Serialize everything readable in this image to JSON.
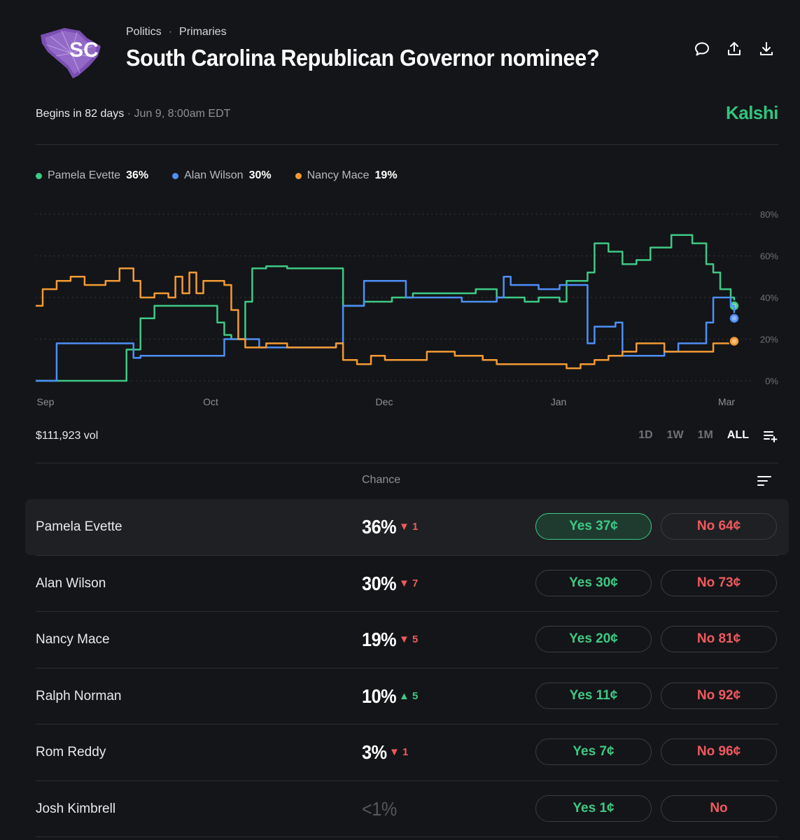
{
  "header": {
    "logo_text": "SC",
    "breadcrumb": [
      "Politics",
      "Primaries"
    ],
    "title": "South Carolina Republican Governor nominee?",
    "icons": [
      "comment-icon",
      "share-icon",
      "download-icon"
    ]
  },
  "schedule": {
    "begins": "Begins in 82 days",
    "date": "Jun 9, 8:00am EDT"
  },
  "brand": {
    "name": "Kalshi",
    "color": "#32c47f"
  },
  "legend": [
    {
      "name": "Pamela Evette",
      "pct": "36%",
      "color": "#3ec985"
    },
    {
      "name": "Alan Wilson",
      "pct": "30%",
      "color": "#4e8ff7"
    },
    {
      "name": "Nancy Mace",
      "pct": "19%",
      "color": "#f39a34"
    }
  ],
  "chart_data": {
    "type": "line",
    "x_ticks": [
      "Sep",
      "Oct",
      "Dec",
      "Jan",
      "Mar"
    ],
    "y_ticks": [
      "0%",
      "20%",
      "40%",
      "60%",
      "80%"
    ],
    "ylim": [
      0,
      80
    ],
    "grid": true,
    "series": [
      {
        "name": "Pamela Evette",
        "color": "#3ec985",
        "points": [
          [
            0,
            0
          ],
          [
            0.13,
            0
          ],
          [
            0.13,
            15
          ],
          [
            0.15,
            30
          ],
          [
            0.17,
            36
          ],
          [
            0.2,
            36
          ],
          [
            0.25,
            36
          ],
          [
            0.26,
            28
          ],
          [
            0.27,
            22
          ],
          [
            0.28,
            20
          ],
          [
            0.3,
            38
          ],
          [
            0.31,
            54
          ],
          [
            0.33,
            55
          ],
          [
            0.34,
            55
          ],
          [
            0.36,
            54
          ],
          [
            0.43,
            54
          ],
          [
            0.44,
            36
          ],
          [
            0.47,
            38
          ],
          [
            0.51,
            40
          ],
          [
            0.54,
            42
          ],
          [
            0.6,
            42
          ],
          [
            0.63,
            44
          ],
          [
            0.66,
            40
          ],
          [
            0.7,
            38
          ],
          [
            0.72,
            40
          ],
          [
            0.75,
            38
          ],
          [
            0.76,
            48
          ],
          [
            0.79,
            52
          ],
          [
            0.8,
            66
          ],
          [
            0.82,
            62
          ],
          [
            0.84,
            56
          ],
          [
            0.86,
            58
          ],
          [
            0.88,
            64
          ],
          [
            0.91,
            70
          ],
          [
            0.93,
            70
          ],
          [
            0.94,
            66
          ],
          [
            0.96,
            56
          ],
          [
            0.97,
            52
          ],
          [
            0.98,
            44
          ],
          [
            0.995,
            40
          ],
          [
            1,
            36
          ]
        ]
      },
      {
        "name": "Alan Wilson",
        "color": "#4e8ff7",
        "points": [
          [
            0,
            0
          ],
          [
            0.03,
            0
          ],
          [
            0.03,
            18
          ],
          [
            0.13,
            18
          ],
          [
            0.14,
            11
          ],
          [
            0.15,
            12
          ],
          [
            0.26,
            12
          ],
          [
            0.27,
            20
          ],
          [
            0.3,
            20
          ],
          [
            0.32,
            16
          ],
          [
            0.34,
            16
          ],
          [
            0.36,
            16
          ],
          [
            0.42,
            16
          ],
          [
            0.43,
            18
          ],
          [
            0.44,
            36
          ],
          [
            0.47,
            48
          ],
          [
            0.52,
            48
          ],
          [
            0.53,
            40
          ],
          [
            0.6,
            40
          ],
          [
            0.61,
            38
          ],
          [
            0.66,
            40
          ],
          [
            0.67,
            50
          ],
          [
            0.68,
            46
          ],
          [
            0.71,
            46
          ],
          [
            0.72,
            44
          ],
          [
            0.75,
            46
          ],
          [
            0.79,
            46
          ],
          [
            0.79,
            18
          ],
          [
            0.8,
            26
          ],
          [
            0.83,
            28
          ],
          [
            0.84,
            12
          ],
          [
            0.88,
            12
          ],
          [
            0.9,
            14
          ],
          [
            0.92,
            18
          ],
          [
            0.96,
            28
          ],
          [
            0.97,
            40
          ],
          [
            0.995,
            36
          ],
          [
            1,
            30
          ]
        ]
      },
      {
        "name": "Nancy Mace",
        "color": "#f39a34",
        "points": [
          [
            0,
            36
          ],
          [
            0.01,
            44
          ],
          [
            0.03,
            48
          ],
          [
            0.05,
            50
          ],
          [
            0.07,
            46
          ],
          [
            0.1,
            48
          ],
          [
            0.12,
            54
          ],
          [
            0.14,
            48
          ],
          [
            0.15,
            40
          ],
          [
            0.17,
            42
          ],
          [
            0.19,
            40
          ],
          [
            0.2,
            50
          ],
          [
            0.21,
            42
          ],
          [
            0.22,
            52
          ],
          [
            0.23,
            42
          ],
          [
            0.24,
            48
          ],
          [
            0.27,
            46
          ],
          [
            0.28,
            34
          ],
          [
            0.29,
            20
          ],
          [
            0.3,
            16
          ],
          [
            0.33,
            18
          ],
          [
            0.35,
            18
          ],
          [
            0.36,
            16
          ],
          [
            0.42,
            16
          ],
          [
            0.43,
            18
          ],
          [
            0.44,
            10
          ],
          [
            0.46,
            8
          ],
          [
            0.48,
            12
          ],
          [
            0.5,
            10
          ],
          [
            0.54,
            10
          ],
          [
            0.56,
            14
          ],
          [
            0.6,
            12
          ],
          [
            0.64,
            10
          ],
          [
            0.66,
            8
          ],
          [
            0.7,
            8
          ],
          [
            0.74,
            8
          ],
          [
            0.76,
            6
          ],
          [
            0.78,
            8
          ],
          [
            0.8,
            10
          ],
          [
            0.82,
            12
          ],
          [
            0.84,
            14
          ],
          [
            0.86,
            18
          ],
          [
            0.9,
            14
          ],
          [
            0.94,
            14
          ],
          [
            0.97,
            18
          ],
          [
            1,
            19
          ]
        ]
      }
    ]
  },
  "volume": "$111,923 vol",
  "ranges": [
    {
      "label": "1D",
      "active": false
    },
    {
      "label": "1W",
      "active": false
    },
    {
      "label": "1M",
      "active": false
    },
    {
      "label": "ALL",
      "active": true
    }
  ],
  "table": {
    "chance_header": "Chance",
    "rows": [
      {
        "name": "Pamela Evette",
        "pct": "36%",
        "dir": "down",
        "change": "1",
        "yes": "Yes 37¢",
        "no": "No 64¢"
      },
      {
        "name": "Alan Wilson",
        "pct": "30%",
        "dir": "down",
        "change": "7",
        "yes": "Yes 30¢",
        "no": "No 73¢"
      },
      {
        "name": "Nancy Mace",
        "pct": "19%",
        "dir": "down",
        "change": "5",
        "yes": "Yes 20¢",
        "no": "No 81¢"
      },
      {
        "name": "Ralph Norman",
        "pct": "10%",
        "dir": "up",
        "change": "5",
        "yes": "Yes 11¢",
        "no": "No 92¢"
      },
      {
        "name": "Rom Reddy",
        "pct": "3%",
        "dir": "down",
        "change": "1",
        "yes": "Yes 7¢",
        "no": "No 96¢"
      },
      {
        "name": "Josh Kimbrell",
        "pct": "<1%",
        "dir": "",
        "change": "",
        "yes": "Yes 1¢",
        "no": "No"
      }
    ]
  }
}
